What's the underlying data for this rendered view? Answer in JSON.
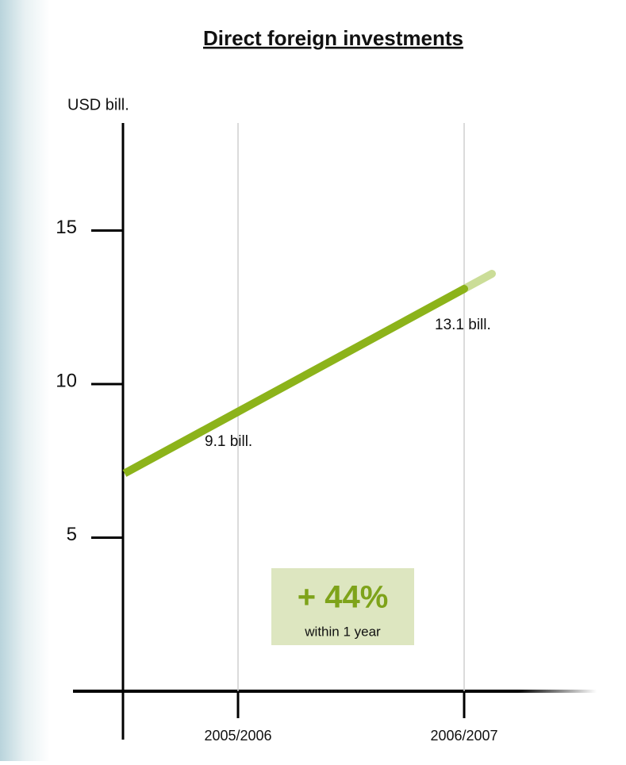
{
  "chart_data": {
    "type": "line",
    "title": "Direct foreign investments",
    "y_label": "USD bill.",
    "categories": [
      "2005/2006",
      "2006/2007"
    ],
    "values": [
      9.1,
      13.1
    ],
    "value_labels": [
      "9.1 bill.",
      "13.1 bill."
    ],
    "color": "#8cb31a",
    "ylim": [
      0,
      18.5
    ],
    "yticks": [
      5,
      10,
      15
    ],
    "grid": true,
    "annotations": [
      "+ 44%",
      "within 1 year"
    ]
  }
}
